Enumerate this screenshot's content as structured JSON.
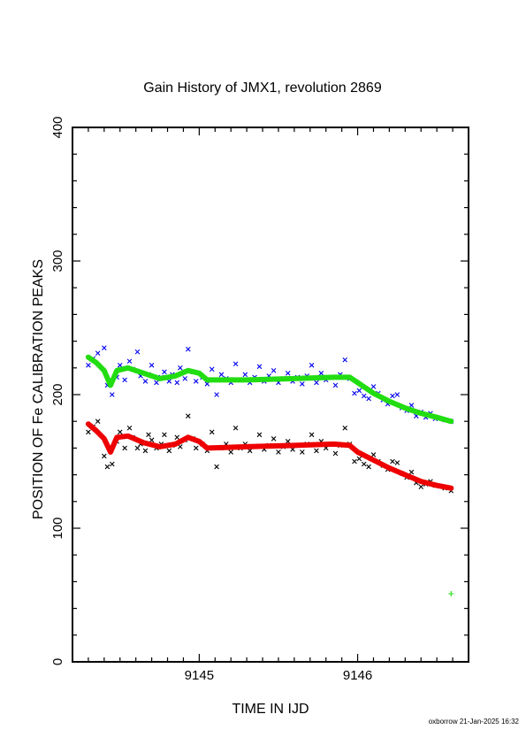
{
  "chart_data": {
    "type": "scatter",
    "title": "Gain History of JMX1, revolution 2869",
    "xlabel": "TIME IN IJD",
    "ylabel": "POSITION OF Fe CALIBRATION PEAKS",
    "xlim": [
      9144.2,
      9146.7
    ],
    "ylim": [
      0,
      400
    ],
    "xticks": [
      9145,
      9146
    ],
    "yticks": [
      0,
      100,
      200,
      300,
      400
    ],
    "grid": false,
    "footer": "oxborrow 21-Jan-2025 16:32",
    "series": [
      {
        "marker": "x",
        "color": "#0000ee",
        "points": [
          [
            9144.3,
            222
          ],
          [
            9144.33,
            227
          ],
          [
            9144.36,
            231
          ],
          [
            9144.4,
            235
          ],
          [
            9144.42,
            207
          ],
          [
            9144.45,
            200
          ],
          [
            9144.48,
            213
          ],
          [
            9144.5,
            222
          ],
          [
            9144.53,
            211
          ],
          [
            9144.56,
            225
          ],
          [
            9144.58,
            219
          ],
          [
            9144.61,
            232
          ],
          [
            9144.63,
            214
          ],
          [
            9144.66,
            210
          ],
          [
            9144.68,
            215
          ],
          [
            9144.7,
            222
          ],
          [
            9144.73,
            209
          ],
          [
            9144.76,
            213
          ],
          [
            9144.78,
            217
          ],
          [
            9144.81,
            210
          ],
          [
            9144.83,
            215
          ],
          [
            9144.86,
            209
          ],
          [
            9144.88,
            220
          ],
          [
            9144.91,
            212
          ],
          [
            9144.93,
            234
          ],
          [
            9144.96,
            217
          ],
          [
            9144.98,
            210
          ],
          [
            9145.02,
            213
          ],
          [
            9145.05,
            208
          ],
          [
            9145.08,
            219
          ],
          [
            9145.11,
            200
          ],
          [
            9145.14,
            215
          ],
          [
            9145.17,
            212
          ],
          [
            9145.2,
            209
          ],
          [
            9145.23,
            223
          ],
          [
            9145.26,
            211
          ],
          [
            9145.29,
            215
          ],
          [
            9145.32,
            209
          ],
          [
            9145.35,
            213
          ],
          [
            9145.38,
            221
          ],
          [
            9145.41,
            210
          ],
          [
            9145.44,
            214
          ],
          [
            9145.47,
            218
          ],
          [
            9145.5,
            209
          ],
          [
            9145.53,
            212
          ],
          [
            9145.56,
            216
          ],
          [
            9145.59,
            210
          ],
          [
            9145.62,
            213
          ],
          [
            9145.65,
            208
          ],
          [
            9145.68,
            214
          ],
          [
            9145.71,
            222
          ],
          [
            9145.74,
            209
          ],
          [
            9145.77,
            216
          ],
          [
            9145.8,
            211
          ],
          [
            9145.83,
            213
          ],
          [
            9145.86,
            207
          ],
          [
            9145.89,
            215
          ],
          [
            9145.92,
            226
          ],
          [
            9145.95,
            212
          ],
          [
            9145.98,
            201
          ],
          [
            9146.01,
            203
          ],
          [
            9146.04,
            199
          ],
          [
            9146.07,
            197
          ],
          [
            9146.1,
            206
          ],
          [
            9146.13,
            201
          ],
          [
            9146.16,
            196
          ],
          [
            9146.19,
            193
          ],
          [
            9146.22,
            199
          ],
          [
            9146.25,
            200
          ],
          [
            9146.28,
            190
          ],
          [
            9146.31,
            188
          ],
          [
            9146.34,
            192
          ],
          [
            9146.37,
            184
          ],
          [
            9146.4,
            187
          ],
          [
            9146.43,
            183
          ],
          [
            9146.46,
            186
          ],
          [
            9146.49,
            182
          ],
          [
            9146.55,
            181
          ],
          [
            9146.59,
            180
          ]
        ]
      },
      {
        "marker": "x",
        "color": "#000000",
        "points": [
          [
            9144.3,
            172
          ],
          [
            9144.33,
            176
          ],
          [
            9144.36,
            180
          ],
          [
            9144.4,
            154
          ],
          [
            9144.42,
            146
          ],
          [
            9144.45,
            148
          ],
          [
            9144.48,
            165
          ],
          [
            9144.5,
            172
          ],
          [
            9144.53,
            160
          ],
          [
            9144.56,
            175
          ],
          [
            9144.58,
            168
          ],
          [
            9144.61,
            160
          ],
          [
            9144.63,
            163
          ],
          [
            9144.66,
            158
          ],
          [
            9144.68,
            170
          ],
          [
            9144.7,
            166
          ],
          [
            9144.73,
            160
          ],
          [
            9144.76,
            163
          ],
          [
            9144.78,
            170
          ],
          [
            9144.81,
            158
          ],
          [
            9144.83,
            162
          ],
          [
            9144.86,
            168
          ],
          [
            9144.88,
            161
          ],
          [
            9144.91,
            166
          ],
          [
            9144.93,
            184
          ],
          [
            9144.96,
            167
          ],
          [
            9144.98,
            160
          ],
          [
            9145.02,
            163
          ],
          [
            9145.05,
            158
          ],
          [
            9145.08,
            172
          ],
          [
            9145.11,
            146
          ],
          [
            9145.14,
            160
          ],
          [
            9145.17,
            163
          ],
          [
            9145.2,
            157
          ],
          [
            9145.23,
            175
          ],
          [
            9145.26,
            160
          ],
          [
            9145.29,
            163
          ],
          [
            9145.32,
            158
          ],
          [
            9145.35,
            161
          ],
          [
            9145.38,
            170
          ],
          [
            9145.41,
            159
          ],
          [
            9145.44,
            162
          ],
          [
            9145.47,
            167
          ],
          [
            9145.5,
            157
          ],
          [
            9145.53,
            161
          ],
          [
            9145.56,
            165
          ],
          [
            9145.59,
            159
          ],
          [
            9145.62,
            162
          ],
          [
            9145.65,
            157
          ],
          [
            9145.68,
            163
          ],
          [
            9145.71,
            170
          ],
          [
            9145.74,
            158
          ],
          [
            9145.77,
            165
          ],
          [
            9145.8,
            160
          ],
          [
            9145.83,
            163
          ],
          [
            9145.86,
            156
          ],
          [
            9145.89,
            162
          ],
          [
            9145.92,
            175
          ],
          [
            9145.95,
            163
          ],
          [
            9145.98,
            150
          ],
          [
            9146.01,
            152
          ],
          [
            9146.04,
            148
          ],
          [
            9146.07,
            146
          ],
          [
            9146.1,
            155
          ],
          [
            9146.13,
            150
          ],
          [
            9146.16,
            147
          ],
          [
            9146.19,
            144
          ],
          [
            9146.22,
            150
          ],
          [
            9146.25,
            149
          ],
          [
            9146.28,
            141
          ],
          [
            9146.31,
            138
          ],
          [
            9146.34,
            142
          ],
          [
            9146.37,
            134
          ],
          [
            9146.4,
            131
          ],
          [
            9146.43,
            133
          ],
          [
            9146.46,
            135
          ],
          [
            9146.49,
            132
          ],
          [
            9146.55,
            130
          ],
          [
            9146.59,
            128
          ]
        ]
      },
      {
        "style": "line",
        "color": "#22dd11",
        "points": [
          [
            9144.3,
            228
          ],
          [
            9144.35,
            224
          ],
          [
            9144.4,
            218
          ],
          [
            9144.44,
            207
          ],
          [
            9144.48,
            218
          ],
          [
            9144.55,
            220
          ],
          [
            9144.65,
            216
          ],
          [
            9144.75,
            212
          ],
          [
            9144.85,
            214
          ],
          [
            9144.93,
            218
          ],
          [
            9145.0,
            216
          ],
          [
            9145.05,
            211
          ],
          [
            9145.3,
            211
          ],
          [
            9145.6,
            212
          ],
          [
            9145.85,
            213
          ],
          [
            9145.95,
            213
          ],
          [
            9146.0,
            209
          ],
          [
            9146.1,
            201
          ],
          [
            9146.2,
            195
          ],
          [
            9146.3,
            190
          ],
          [
            9146.4,
            186
          ],
          [
            9146.5,
            183
          ],
          [
            9146.59,
            180
          ]
        ]
      },
      {
        "style": "line",
        "color": "#ee0000",
        "points": [
          [
            9144.3,
            178
          ],
          [
            9144.35,
            173
          ],
          [
            9144.4,
            167
          ],
          [
            9144.44,
            157
          ],
          [
            9144.48,
            168
          ],
          [
            9144.55,
            169
          ],
          [
            9144.65,
            164
          ],
          [
            9144.75,
            161
          ],
          [
            9144.85,
            163
          ],
          [
            9144.93,
            168
          ],
          [
            9145.0,
            165
          ],
          [
            9145.05,
            160
          ],
          [
            9145.3,
            161
          ],
          [
            9145.6,
            162
          ],
          [
            9145.85,
            163
          ],
          [
            9145.95,
            162
          ],
          [
            9146.0,
            157
          ],
          [
            9146.1,
            151
          ],
          [
            9146.2,
            145
          ],
          [
            9146.3,
            140
          ],
          [
            9146.4,
            135
          ],
          [
            9146.5,
            132
          ],
          [
            9146.59,
            130
          ]
        ]
      },
      {
        "marker": "+",
        "color": "#22dd11",
        "points": [
          [
            9146.59,
            51
          ]
        ]
      }
    ]
  }
}
